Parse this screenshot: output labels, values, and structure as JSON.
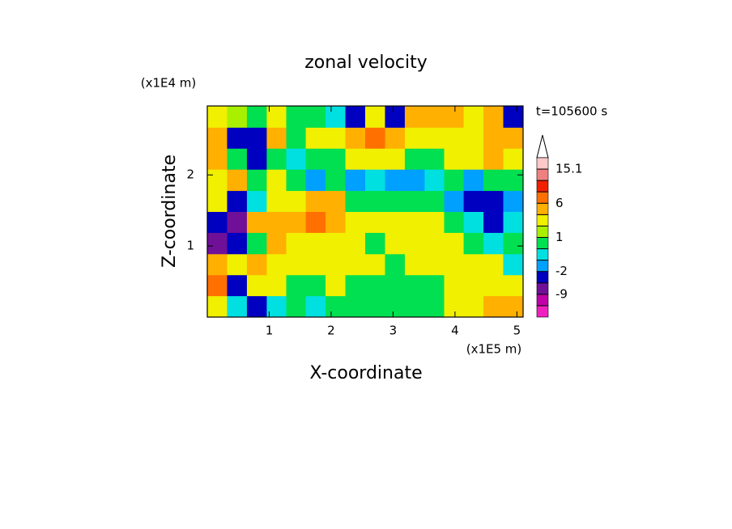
{
  "chart_data": {
    "type": "contour",
    "title": "zonal velocity",
    "x_label": "X-coordinate",
    "y_label": "Z-coordinate",
    "x_unit": "(x1E5 m)",
    "y_unit": "(x1E4 m)",
    "annotation": "t=105600 s",
    "xlim": [
      0,
      5.1
    ],
    "ylim": [
      0,
      2.97
    ],
    "xticks": [
      1,
      2,
      3,
      4,
      5
    ],
    "yticks": [
      1,
      2
    ],
    "x": [
      0.16,
      0.48,
      0.8,
      1.12,
      1.43,
      1.75,
      2.07,
      2.39,
      2.71,
      3.03,
      3.35,
      3.67,
      3.98,
      4.3,
      4.62,
      4.94
    ],
    "y": [
      0.15,
      0.45,
      0.74,
      1.04,
      1.34,
      1.63,
      1.93,
      2.23,
      2.52,
      2.82
    ],
    "values": [
      [
        3,
        -0.5,
        -4,
        -0.5,
        0.5,
        -0.5,
        0.5,
        0.5,
        0.5,
        0.5,
        0.5,
        0.5,
        2,
        2,
        5,
        5
      ],
      [
        6.5,
        -3,
        3,
        3,
        0.5,
        0.5,
        2,
        0.5,
        0.5,
        0.5,
        0.5,
        0.5,
        2,
        2,
        3,
        3
      ],
      [
        5,
        3,
        5,
        3,
        2,
        2,
        2,
        2,
        2,
        0.5,
        2,
        2,
        2,
        2,
        2,
        -0.5
      ],
      [
        -7,
        -5,
        0.5,
        5,
        3,
        2,
        2,
        2,
        0.5,
        2,
        2,
        2,
        2,
        0.5,
        -0.5,
        0.5
      ],
      [
        -5,
        -7,
        5,
        5,
        5,
        6.5,
        5,
        3,
        2,
        2,
        3,
        2,
        0.5,
        -0.5,
        -3,
        -0.5
      ],
      [
        3,
        -3,
        -0.5,
        2,
        3,
        5,
        5,
        0.5,
        0.5,
        0.5,
        0.5,
        0.5,
        -1.5,
        -4,
        -4,
        -1.5
      ],
      [
        2,
        5,
        0.5,
        3,
        0.5,
        -1.5,
        0.5,
        -1.5,
        -0.5,
        -1.5,
        -1.5,
        -0.5,
        0.5,
        -1.5,
        0.5,
        0.5
      ],
      [
        5,
        0.5,
        -3,
        0.5,
        -0.5,
        0.5,
        0.5,
        2,
        2,
        3,
        0.5,
        0.5,
        3,
        3,
        5,
        3
      ],
      [
        4,
        -4,
        -4,
        5,
        0.5,
        2,
        3,
        5,
        6.5,
        5,
        3,
        3,
        2,
        3,
        5,
        5
      ],
      [
        2,
        1,
        0.5,
        3,
        0.5,
        0.5,
        -0.5,
        -4,
        3,
        -3,
        5,
        5,
        5,
        3,
        5,
        -3
      ]
    ],
    "levels": [
      -12,
      -9,
      -6,
      -2,
      -1,
      0,
      1,
      2,
      4,
      6,
      9,
      12,
      15.1
    ],
    "colors": [
      "#f020c0",
      "#c000a8",
      "#701098",
      "#0000c0",
      "#00a0ff",
      "#00e0e0",
      "#00e050",
      "#a8f000",
      "#f0f000",
      "#ffb000",
      "#ff7000",
      "#f02000",
      "#f08080",
      "#ffc8c8"
    ],
    "colorbar_labels": [
      15.1,
      6,
      1,
      -2,
      -9
    ]
  }
}
